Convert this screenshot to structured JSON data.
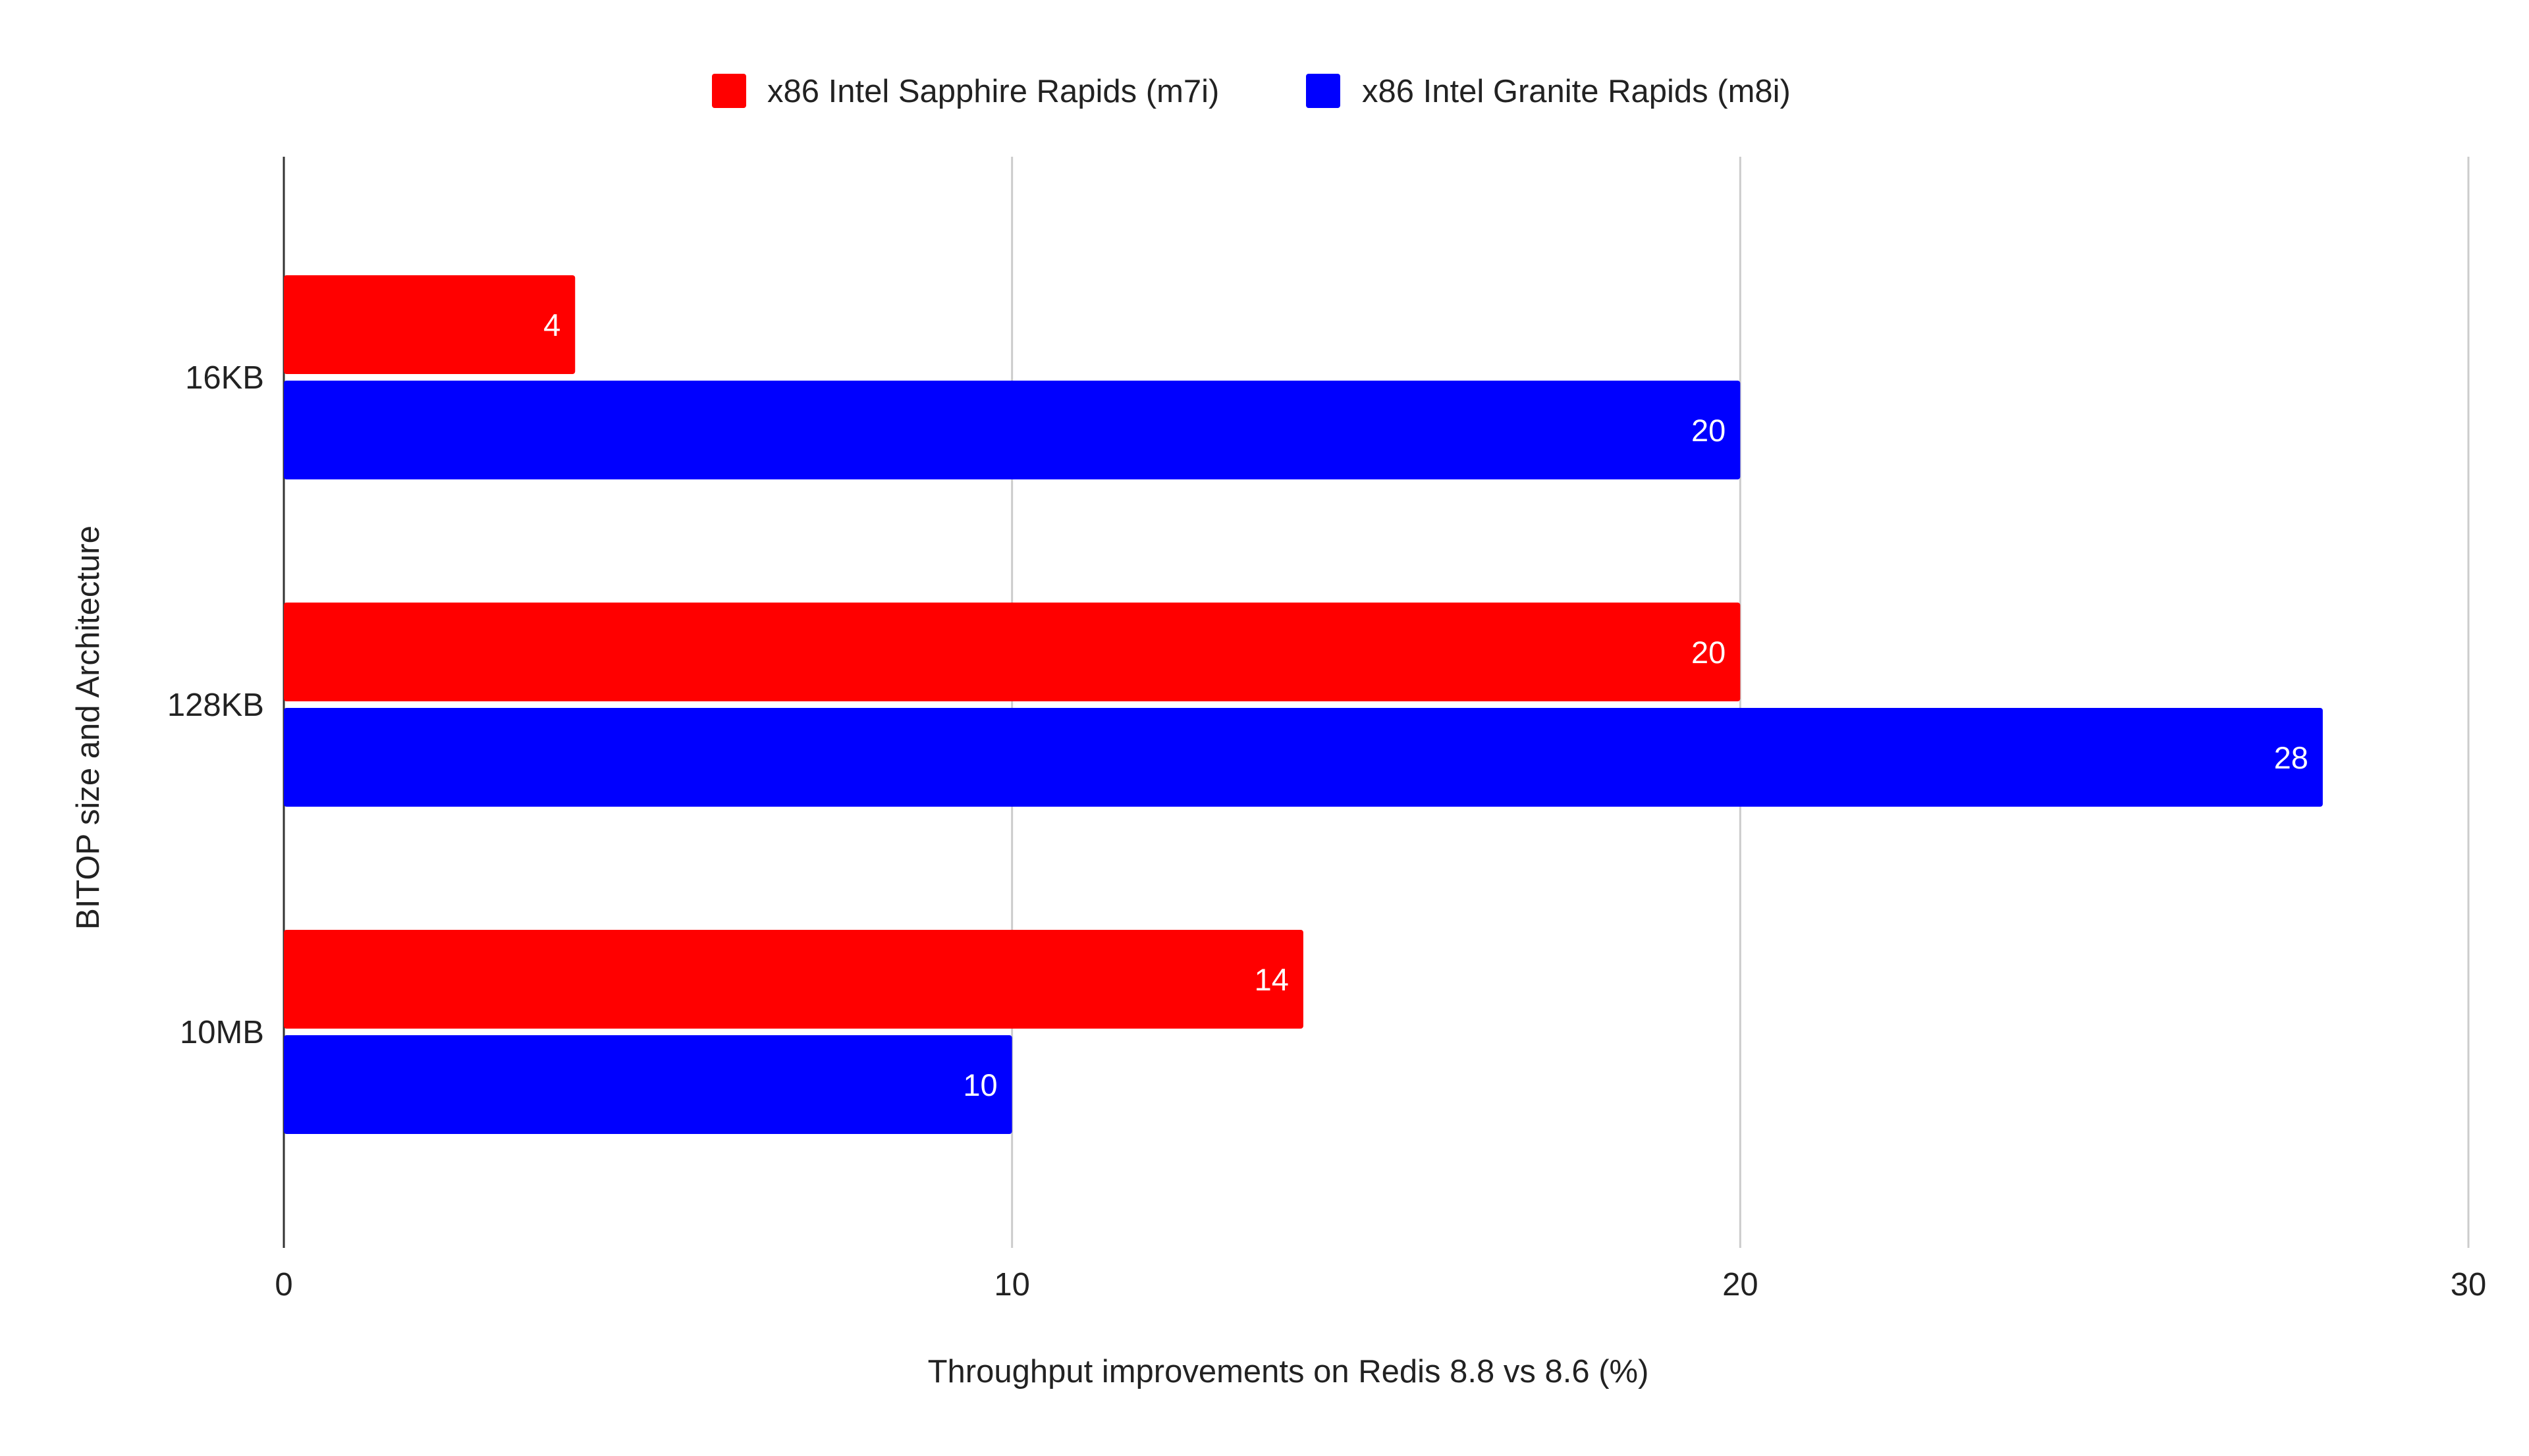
{
  "chart_data": {
    "type": "bar",
    "orientation": "horizontal",
    "categories": [
      "16KB",
      "128KB",
      "10MB"
    ],
    "series": [
      {
        "name": "x86 Intel Sapphire Rapids (m7i)",
        "color": "#ff0000",
        "values": [
          4,
          20,
          14
        ]
      },
      {
        "name": "x86 Intel Granite Rapids (m8i)",
        "color": "#0000ff",
        "values": [
          20,
          28,
          10
        ]
      }
    ],
    "xlabel": "Throughput improvements on Redis 8.8 vs 8.6 (%)",
    "ylabel": "BITOP size and Architecture",
    "xlim": [
      0,
      30
    ],
    "xticks": [
      "0",
      "10",
      "20",
      "30"
    ],
    "grid": true,
    "legend_position": "top"
  }
}
